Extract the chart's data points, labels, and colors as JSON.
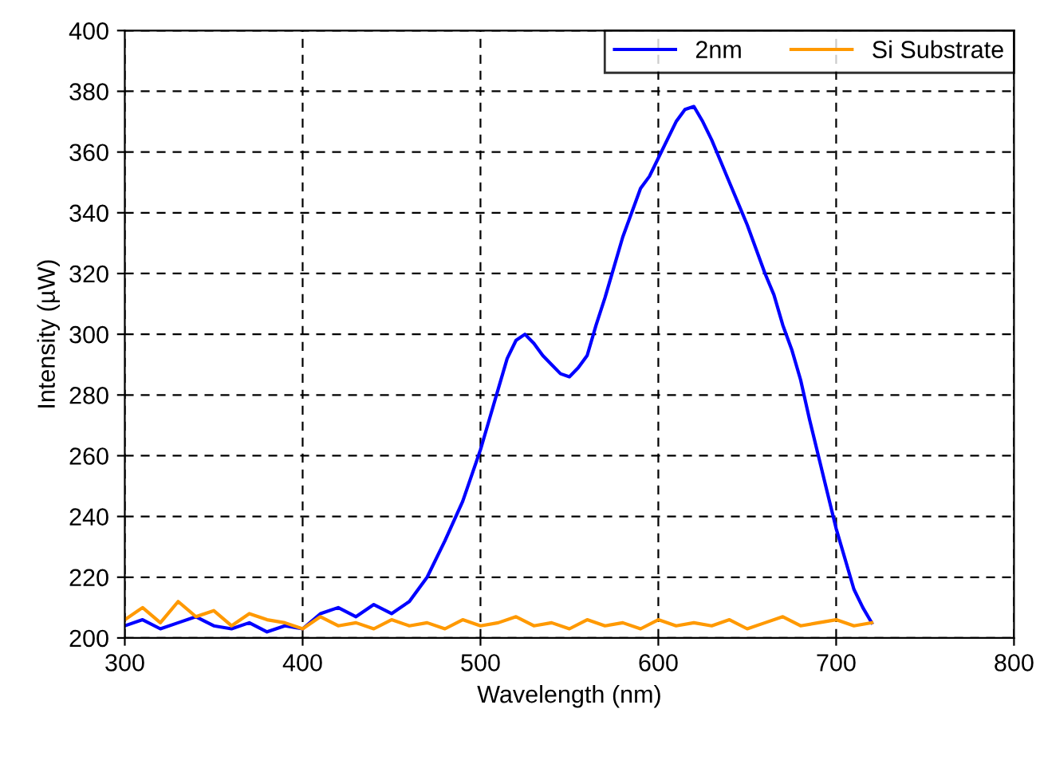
{
  "chart_data": {
    "type": "line",
    "xlabel": "Wavelength (nm)",
    "ylabel": "Intensity (µW)",
    "xlim": [
      300,
      800
    ],
    "xticks": [
      300,
      400,
      500,
      600,
      700,
      800
    ],
    "ylim": [
      200,
      400
    ],
    "yticks": [
      200,
      220,
      240,
      260,
      280,
      300,
      320,
      340,
      360,
      380,
      400
    ],
    "grid": true,
    "legend": "top right",
    "line_style": "solid",
    "marker": "none",
    "series": [
      {
        "name": "2nm",
        "color": "#0000ff",
        "x": [
          300,
          310,
          320,
          330,
          340,
          350,
          360,
          370,
          380,
          390,
          400,
          410,
          420,
          430,
          440,
          450,
          460,
          470,
          480,
          490,
          500,
          505,
          510,
          515,
          520,
          525,
          530,
          535,
          540,
          545,
          550,
          555,
          560,
          565,
          570,
          575,
          580,
          585,
          590,
          595,
          600,
          605,
          610,
          615,
          620,
          625,
          630,
          635,
          640,
          645,
          650,
          655,
          660,
          665,
          670,
          675,
          680,
          685,
          690,
          695,
          700,
          705,
          710,
          715,
          720
        ],
        "values": [
          204,
          206,
          203,
          205,
          207,
          204,
          203,
          205,
          202,
          204,
          203,
          208,
          210,
          207,
          211,
          208,
          212,
          220,
          232,
          245,
          262,
          272,
          282,
          292,
          298,
          300,
          297,
          293,
          290,
          287,
          286,
          289,
          293,
          303,
          312,
          322,
          332,
          340,
          348,
          352,
          358,
          364,
          370,
          374,
          375,
          370,
          364,
          357,
          350,
          343,
          336,
          328,
          320,
          313,
          303,
          295,
          285,
          272,
          260,
          248,
          236,
          226,
          216,
          210,
          205
        ]
      },
      {
        "name": "Si Substrate",
        "color": "#ff9900",
        "x": [
          300,
          310,
          320,
          330,
          340,
          350,
          360,
          370,
          380,
          390,
          400,
          410,
          420,
          430,
          440,
          450,
          460,
          470,
          480,
          490,
          500,
          510,
          520,
          530,
          540,
          550,
          560,
          570,
          580,
          590,
          600,
          610,
          620,
          630,
          640,
          650,
          660,
          670,
          680,
          690,
          700,
          710,
          720
        ],
        "values": [
          206,
          210,
          205,
          212,
          207,
          209,
          204,
          208,
          206,
          205,
          203,
          207,
          204,
          205,
          203,
          206,
          204,
          205,
          203,
          206,
          204,
          205,
          207,
          204,
          205,
          203,
          206,
          204,
          205,
          203,
          206,
          204,
          205,
          204,
          206,
          203,
          205,
          207,
          204,
          205,
          206,
          204,
          205
        ]
      }
    ]
  }
}
